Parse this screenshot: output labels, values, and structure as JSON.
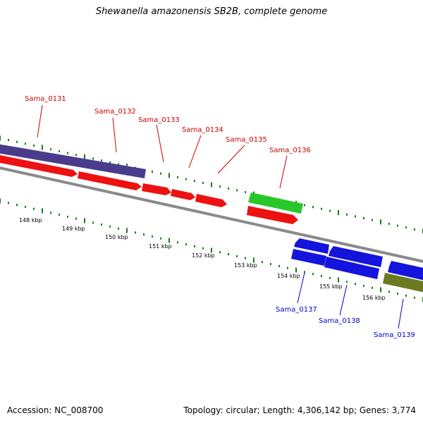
{
  "title": "Shewanella amazonensis SB2B, complete genome",
  "accession": "Accession: NC_008700",
  "summary": "Topology: circular; Length: 4,306,142 bp; Genes: 3,774",
  "colors": {
    "forward_gene": "#ee1111",
    "reverse_gene": "#1414dd",
    "other_gene": "#2ac72a",
    "operon_purple": "#4a3c8c",
    "operon_olive": "#6b7a1f",
    "label_forward": "#cc0000",
    "label_reverse": "#0000cc",
    "ticks": "#1a7a1a",
    "backbone": "#888888"
  },
  "scale_labels": [
    "148 kbp",
    "149 kbp",
    "150 kbp",
    "151 kbp",
    "152 kbp",
    "153 kbp",
    "154 kbp",
    "155 kbp",
    "156 kbp"
  ],
  "gene_labels": {
    "forward": [
      "Sama_0131",
      "Sama_0132",
      "Sama_0133",
      "Sama_0134",
      "Sama_0135",
      "Sama_0136"
    ],
    "reverse": [
      "Sama_0137",
      "Sama_0138",
      "Sama_0139"
    ]
  }
}
